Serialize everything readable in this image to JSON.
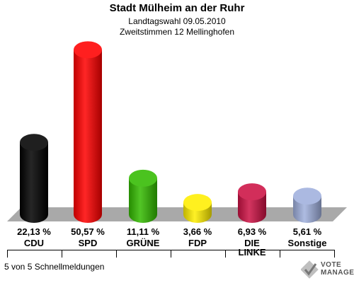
{
  "header": {
    "title": "Stadt Mülheim an der Ruhr",
    "subtitle1": "Landtagswahl 09.05.2010",
    "subtitle2": "Zweitstimmen 12 Mellinghofen"
  },
  "chart_data": {
    "type": "bar",
    "categories": [
      "CDU",
      "SPD",
      "GRÜNE",
      "FDP",
      "DIE LINKE",
      "Sonstige"
    ],
    "values": [
      22.13,
      50.57,
      11.11,
      3.66,
      6.93,
      5.61
    ],
    "value_labels": [
      "22,13 %",
      "50,57 %",
      "11,11 %",
      "3,66 %",
      "6,93 %",
      "5,61 %"
    ],
    "colors": [
      "#000000",
      "#ff0000",
      "#33bb00",
      "#ffee00",
      "#cc1144",
      "#a0b0dd"
    ],
    "party_lines": [
      [
        "CDU"
      ],
      [
        "SPD"
      ],
      [
        "GRÜNE"
      ],
      [
        "FDP"
      ],
      [
        "DIE",
        "LINKE"
      ],
      [
        "Sonstige"
      ]
    ]
  },
  "footer": {
    "text": "5 von 5 Schnellmeldungen"
  },
  "logo": {
    "line1": "VOTE",
    "line2": "MANAGER"
  }
}
